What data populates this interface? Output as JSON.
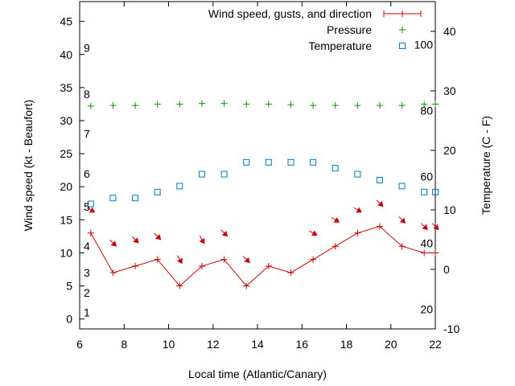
{
  "chart_data": {
    "type": "line",
    "xlabel": "Local time (Atlantic/Canary)",
    "ylabel": "Wind speed (kt - Beaufort)",
    "y2label": "Temperature (C - F)",
    "xlim": [
      6,
      22
    ],
    "ylim": [
      -1.5,
      48
    ],
    "y2lim": [
      -10,
      45
    ],
    "x_ticks": [
      6,
      8,
      10,
      12,
      14,
      16,
      18,
      20,
      22
    ],
    "y_ticks": [
      0,
      5,
      10,
      15,
      20,
      25,
      30,
      35,
      40,
      45
    ],
    "y2_ticks": [
      -10,
      0,
      10,
      20,
      30,
      40
    ],
    "beaufort_labels": [
      {
        "label": "1",
        "kt": 1
      },
      {
        "label": "2",
        "kt": 4
      },
      {
        "label": "3",
        "kt": 7
      },
      {
        "label": "4",
        "kt": 11
      },
      {
        "label": "5",
        "kt": 17
      },
      {
        "label": "6",
        "kt": 22
      },
      {
        "label": "7",
        "kt": 28
      },
      {
        "label": "8",
        "kt": 34
      },
      {
        "label": "9",
        "kt": 41
      }
    ],
    "fahrenheit_labels": [
      {
        "label": "20",
        "c": -6.7
      },
      {
        "label": "40",
        "c": 4.4
      },
      {
        "label": "60",
        "c": 15.6
      },
      {
        "label": "80",
        "c": 26.7
      },
      {
        "label": "100",
        "c": 37.8
      }
    ],
    "legend": [
      {
        "label": "Wind speed, gusts, and direction",
        "color": "#cc0000"
      },
      {
        "label": "Pressure",
        "color": "#009900"
      },
      {
        "label": "Temperature",
        "color": "#0077cc"
      }
    ],
    "series": [
      {
        "name": "Wind speed, gusts, and direction",
        "color": "#cc0000",
        "x": [
          6.5,
          7.5,
          8.5,
          9.5,
          10.5,
          11.5,
          12.5,
          13.5,
          14.5,
          15.5,
          16.5,
          17.5,
          18.5,
          19.5,
          20.5,
          21.5,
          22
        ],
        "y": [
          13,
          7,
          8,
          9,
          5,
          8,
          9,
          5,
          8,
          7,
          9,
          11,
          13,
          14,
          11,
          10,
          10
        ]
      },
      {
        "name": "Pressure",
        "color": "#009900",
        "axis": "y1",
        "x": [
          6.5,
          7.5,
          8.5,
          9.5,
          10.5,
          11.5,
          12.5,
          13.5,
          14.5,
          15.5,
          16.5,
          17.5,
          18.5,
          19.5,
          20.5,
          21.5,
          22
        ],
        "y": [
          32.2,
          32.3,
          32.3,
          32.5,
          32.5,
          32.6,
          32.6,
          32.5,
          32.5,
          32.4,
          32.3,
          32.3,
          32.3,
          32.3,
          32.3,
          32.5,
          32.5
        ]
      },
      {
        "name": "Temperature",
        "color": "#0077cc",
        "axis": "y2",
        "x": [
          6.5,
          7.5,
          8.5,
          9.5,
          10.5,
          11.5,
          12.5,
          13.5,
          14.5,
          15.5,
          16.5,
          17.5,
          18.5,
          19.5,
          20.5,
          21.5,
          22
        ],
        "y": [
          11,
          12,
          12,
          13,
          14,
          16,
          16,
          18,
          18,
          18,
          18,
          17,
          16,
          15,
          14,
          13,
          13
        ]
      }
    ],
    "wind_arrows": {
      "x": [
        6.5,
        7.5,
        8.5,
        9.5,
        10.5,
        11.5,
        12.5,
        13.5,
        16.5,
        17.5,
        18.5,
        19.5,
        20.5,
        21.5,
        22
      ],
      "y": [
        16.5,
        11.5,
        12,
        12.5,
        9,
        12,
        13,
        9,
        13,
        15,
        16.5,
        17.5,
        15,
        14,
        14
      ],
      "direction_deg": [
        300,
        315,
        315,
        315,
        330,
        330,
        315,
        315,
        300,
        300,
        300,
        315,
        315,
        315,
        315
      ]
    }
  }
}
